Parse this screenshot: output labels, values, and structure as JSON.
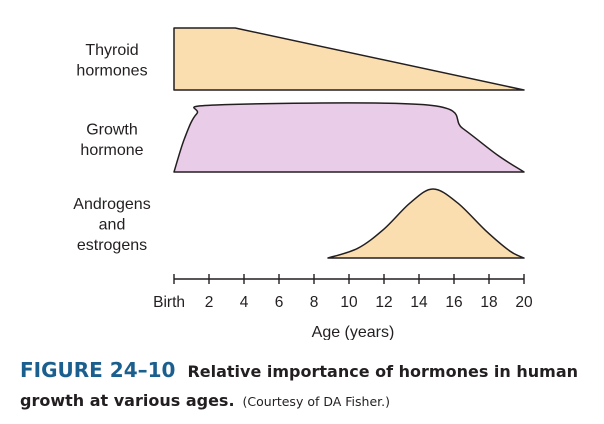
{
  "chart_data": {
    "type": "area",
    "xlabel": "Age (years)",
    "ylabel": "",
    "title": "",
    "xlim": [
      0,
      20
    ],
    "ylim": [
      0,
      1
    ],
    "x_ticks": [
      {
        "value": 0,
        "label": "Birth"
      },
      {
        "value": 2,
        "label": "2"
      },
      {
        "value": 4,
        "label": "4"
      },
      {
        "value": 6,
        "label": "6"
      },
      {
        "value": 8,
        "label": "8"
      },
      {
        "value": 10,
        "label": "10"
      },
      {
        "value": 12,
        "label": "12"
      },
      {
        "value": 14,
        "label": "14"
      },
      {
        "value": 16,
        "label": "16"
      },
      {
        "value": 18,
        "label": "18"
      },
      {
        "value": 20,
        "label": "20"
      }
    ],
    "grid": false,
    "series": [
      {
        "name": "Thyroid hormones",
        "label_lines": [
          "Thyroid",
          "hormones"
        ],
        "color": "#fbdeb0",
        "x": [
          0,
          3.5,
          20
        ],
        "y": [
          1,
          1,
          0
        ],
        "smooth": false,
        "closed_left": true
      },
      {
        "name": "Growth hormone",
        "label_lines": [
          "Growth",
          "hormone"
        ],
        "color": "#e9cde8",
        "x": [
          0,
          0.6,
          1.3,
          2.4,
          14.5,
          16.5,
          18.5,
          20
        ],
        "y": [
          0,
          0.5,
          0.87,
          1,
          1,
          0.65,
          0.25,
          0
        ],
        "smooth": true,
        "closed_left": false
      },
      {
        "name": "Androgens and estrogens",
        "label_lines": [
          "Androgens",
          "and",
          "estrogens"
        ],
        "color": "#fbdeb0",
        "x": [
          8.8,
          10.5,
          12,
          13.5,
          14.8,
          16.2,
          17.8,
          19.2,
          20
        ],
        "y": [
          0,
          0.14,
          0.42,
          0.8,
          1,
          0.8,
          0.4,
          0.1,
          0
        ],
        "smooth": true,
        "closed_left": false
      }
    ]
  },
  "caption": {
    "figure_number": "FIGURE 24–10",
    "title": "Relative importance of hormones in human growth at various ages.",
    "credit": "(Courtesy of DA Fisher.)"
  }
}
